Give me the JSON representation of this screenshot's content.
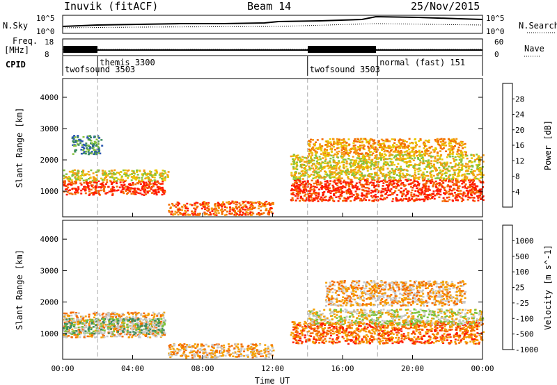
{
  "header": {
    "station": "Inuvik (fitACF)",
    "beam": "Beam 14",
    "date": "25/Nov/2015"
  },
  "strip_labels": {
    "nsky": "N.Sky",
    "nsearch": "N.Search",
    "freq_line1": "Freq.",
    "freq_line2": "[MHz]",
    "nave": "Nave",
    "cpid": "CPID",
    "nsky_ticks": [
      "10^5",
      "10^0"
    ],
    "nsearch_ticks": [
      "10^5",
      "10^0"
    ],
    "freq_ticks": [
      "18",
      "8"
    ],
    "nave_ticks": [
      "60",
      "0"
    ]
  },
  "cpid_modes": [
    {
      "label": "twofsound 3503",
      "start_hour": 0
    },
    {
      "label": "themis 3300",
      "start_hour": 2
    },
    {
      "label": "twofsound 3503",
      "start_hour": 14
    },
    {
      "label": "normal (fast) 151",
      "start_hour": 18
    }
  ],
  "chart_data": [
    {
      "type": "heatmap",
      "name": "power",
      "ylabel": "Slant Range [km]",
      "xlabel": "",
      "xlim": [
        0,
        24
      ],
      "ylim": [
        180,
        4600
      ],
      "yticks": [
        "1000",
        "2000",
        "3000",
        "4000"
      ],
      "x_tick_labels": [
        "00:00",
        "04:00",
        "08:00",
        "12:00",
        "16:00",
        "20:00",
        "00:00"
      ],
      "colorbar": {
        "label": "Power [dB]",
        "tick_labels": [
          "4",
          "8",
          "12",
          "16",
          "20",
          "24",
          "28"
        ],
        "colors": [
          "#0000ff",
          "#2a56b0",
          "#3c8c5e",
          "#86c23c",
          "#e8c800",
          "#f59a12",
          "#f46a00",
          "#ff1a00"
        ]
      },
      "regions": [
        {
          "t0": 0.0,
          "t1": 5.8,
          "r0": 900,
          "r1": 1350,
          "level": 7
        },
        {
          "t0": 0.0,
          "t1": 6.0,
          "r0": 1350,
          "r1": 1700,
          "level": 4
        },
        {
          "t0": 0.5,
          "t1": 2.2,
          "r0": 2200,
          "r1": 2800,
          "level": 2
        },
        {
          "t0": 6.0,
          "t1": 12.0,
          "r0": 250,
          "r1": 700,
          "level": 6
        },
        {
          "t0": 13.0,
          "t1": 24.0,
          "r0": 700,
          "r1": 1400,
          "level": 7
        },
        {
          "t0": 13.0,
          "t1": 24.0,
          "r0": 1400,
          "r1": 2200,
          "level": 4
        },
        {
          "t0": 14.0,
          "t1": 23.0,
          "r0": 2200,
          "r1": 2700,
          "level": 5
        }
      ]
    },
    {
      "type": "heatmap",
      "name": "velocity",
      "ylabel": "Slant Range [km]",
      "xlabel": "Time UT",
      "xlim": [
        0,
        24
      ],
      "ylim": [
        180,
        4600
      ],
      "yticks": [
        "1000",
        "2000",
        "3000",
        "4000"
      ],
      "x_tick_labels": [
        "00:00",
        "04:00",
        "08:00",
        "12:00",
        "16:00",
        "20:00",
        "00:00"
      ],
      "colorbar": {
        "label": "Velocity [m s^-1]",
        "tick_labels": [
          "1000",
          "500",
          "100",
          "25",
          "-25",
          "-100",
          "-500",
          "-1000"
        ],
        "colors": [
          "#1e3cc8",
          "#2a72aa",
          "#3c8c5e",
          "#7ac23c",
          "#c8c8c8",
          "#f5a000",
          "#f46a00",
          "#ff1a00"
        ]
      },
      "regions": [
        {
          "t0": 0.0,
          "t1": 5.8,
          "r0": 900,
          "r1": 1700,
          "level": 5
        },
        {
          "t0": 0.0,
          "t1": 5.8,
          "r0": 1000,
          "r1": 1500,
          "level": 3
        },
        {
          "t0": 6.0,
          "t1": 12.0,
          "r0": 250,
          "r1": 700,
          "level": 5
        },
        {
          "t0": 13.0,
          "t1": 24.0,
          "r0": 700,
          "r1": 1400,
          "level": 6
        },
        {
          "t0": 14.0,
          "t1": 24.0,
          "r0": 1300,
          "r1": 1800,
          "level": 4
        },
        {
          "t0": 15.0,
          "t1": 23.0,
          "r0": 1900,
          "r1": 2700,
          "level": 5
        }
      ]
    }
  ]
}
